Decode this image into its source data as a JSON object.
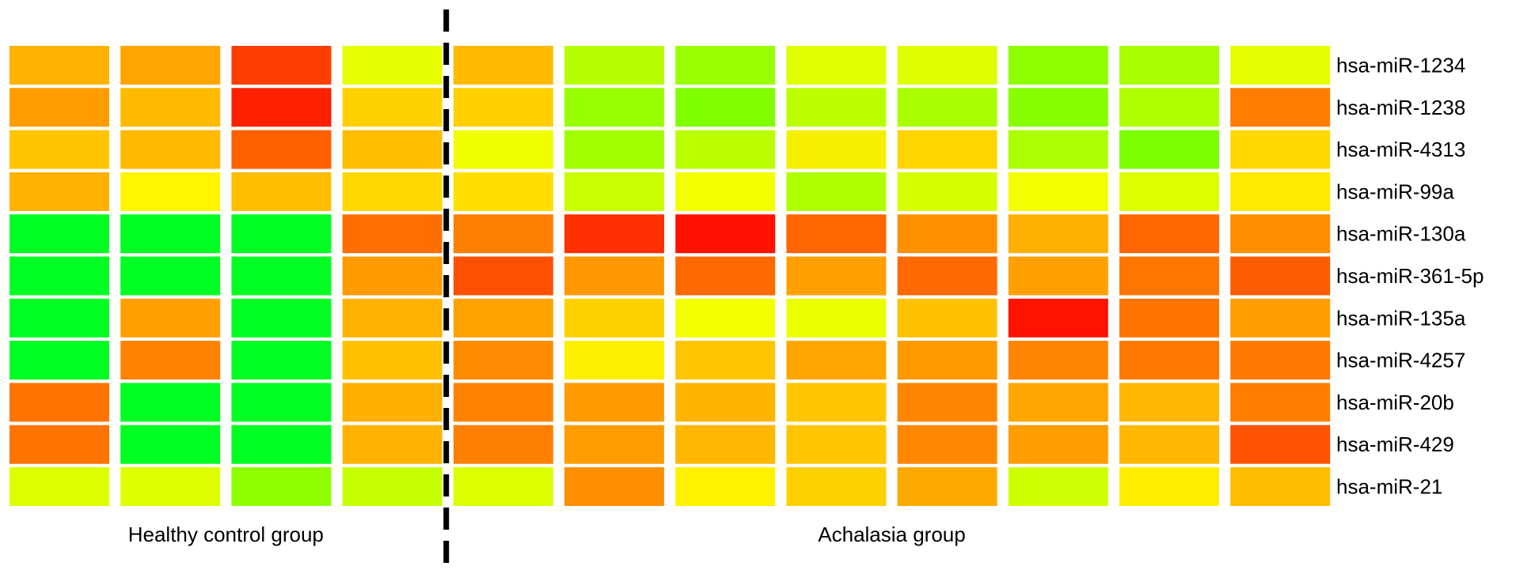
{
  "chart_data": {
    "type": "heatmap",
    "title": "",
    "rows": [
      "hsa-miR-1234",
      "hsa-miR-1238",
      "hsa-miR-4313",
      "hsa-miR-99a",
      "hsa-miR-130a",
      "hsa-miR-361-5p",
      "hsa-miR-135a",
      "hsa-miR-4257",
      "hsa-miR-20b",
      "hsa-miR-429",
      "hsa-miR-21"
    ],
    "groups": [
      {
        "label": "Healthy control group",
        "columns": 4
      },
      {
        "label": "Achalasia group",
        "columns": 8
      }
    ],
    "colors": [
      [
        "#FFB300",
        "#FFA500",
        "#FF3F00",
        "#E6FF00",
        "#FFBA00",
        "#B7FF00",
        "#9AFF00",
        "#E0FF00",
        "#DFFF00",
        "#8DFF00",
        "#A8FF00",
        "#E5FF00"
      ],
      [
        "#FF9C00",
        "#FFBA00",
        "#FF2000",
        "#FFD000",
        "#FFCF00",
        "#98FF00",
        "#80FF00",
        "#B9FF00",
        "#A8FF00",
        "#87FF00",
        "#B0FF00",
        "#FF7D00"
      ],
      [
        "#FFC400",
        "#FFBA00",
        "#FF6000",
        "#FFBD00",
        "#F0FF00",
        "#A1FF00",
        "#B9FF00",
        "#F5F000",
        "#FFD500",
        "#ABFF00",
        "#7BFF00",
        "#FFD800"
      ],
      [
        "#FFB100",
        "#FFF500",
        "#FFBD00",
        "#FFD800",
        "#FFDE00",
        "#CAFF00",
        "#F4FF00",
        "#AFFF00",
        "#D4FF00",
        "#F3FF00",
        "#DCFF00",
        "#FFE900"
      ],
      [
        "#00FF22",
        "#00FF22",
        "#00FF22",
        "#FF6F00",
        "#FF7F00",
        "#FF3000",
        "#FF1000",
        "#FF6600",
        "#FF9000",
        "#FFB000",
        "#FF6500",
        "#FF8E00"
      ],
      [
        "#00FF22",
        "#00FF22",
        "#00FF22",
        "#FF9A00",
        "#FF5000",
        "#FF9800",
        "#FF6900",
        "#FFA000",
        "#FF6900",
        "#FFA000",
        "#FF7500",
        "#FF5B00"
      ],
      [
        "#00FF22",
        "#FFA000",
        "#00FF22",
        "#FFB200",
        "#FFA200",
        "#FFD000",
        "#F4FF00",
        "#ECFF00",
        "#FFC200",
        "#FF1200",
        "#FF7300",
        "#FF9E00"
      ],
      [
        "#00FF22",
        "#FF8300",
        "#00FF22",
        "#FFC100",
        "#FF8C00",
        "#FFF000",
        "#FFC600",
        "#FFA600",
        "#FF9900",
        "#FF8500",
        "#FF7800",
        "#FF7A00"
      ],
      [
        "#FF7300",
        "#00FF22",
        "#00FF22",
        "#FFAF00",
        "#FF8300",
        "#FF9A00",
        "#FFB500",
        "#FFC600",
        "#FF8600",
        "#FFA600",
        "#FFB700",
        "#FF7E00"
      ],
      [
        "#FF7300",
        "#00FF22",
        "#00FF22",
        "#FFB200",
        "#FF8000",
        "#FF9D00",
        "#FFB700",
        "#FFC500",
        "#FF8800",
        "#FF9E00",
        "#FFB800",
        "#FF5200"
      ],
      [
        "#DEFF00",
        "#DEFF00",
        "#8FFF00",
        "#C6FF00",
        "#DBFF00",
        "#FF8E00",
        "#FFF100",
        "#FFD000",
        "#FFAA00",
        "#CFFF00",
        "#FFEE00",
        "#FFBC00"
      ]
    ]
  }
}
